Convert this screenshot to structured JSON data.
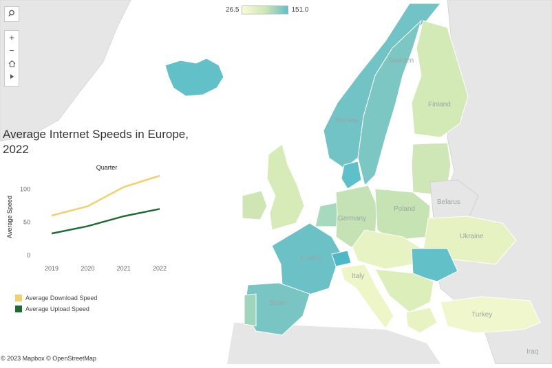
{
  "title": "Average Internet Speeds in Europe, 2022",
  "color_legend": {
    "min": "26.5",
    "max": "151.0",
    "low_color": "#f7fbd4",
    "high_color": "#5ec0c8"
  },
  "map_controls": [
    "search-icon",
    "zoom-in-icon",
    "zoom-out-icon",
    "home-icon",
    "play-icon"
  ],
  "map_labels": {
    "sweden": "Sweden",
    "finland": "Finland",
    "norway": "Norway",
    "poland": "Poland",
    "belarus": "Belarus",
    "germany": "Germany",
    "ukraine": "Ukraine",
    "france": "France",
    "italy": "Italy",
    "spain": "Spain",
    "turkey": "Turkey",
    "iraq": "Iraq"
  },
  "attribution": "© 2023 Mapbox © OpenStreetMap",
  "chart_data": {
    "type": "line",
    "title": "Quarter",
    "ylabel": "Average Speed",
    "xlabel": "",
    "x": [
      "2019",
      "2020",
      "2021",
      "2022"
    ],
    "yticks": [
      "100",
      "50",
      "0"
    ],
    "ylim": [
      0,
      120
    ],
    "series": [
      {
        "name": "Average Download Speed",
        "color": "#f2d06b",
        "values": [
          60,
          74,
          103,
          120
        ]
      },
      {
        "name": "Average Upload Speed",
        "color": "#1e6b35",
        "values": [
          33,
          44,
          59,
          70
        ]
      }
    ]
  }
}
